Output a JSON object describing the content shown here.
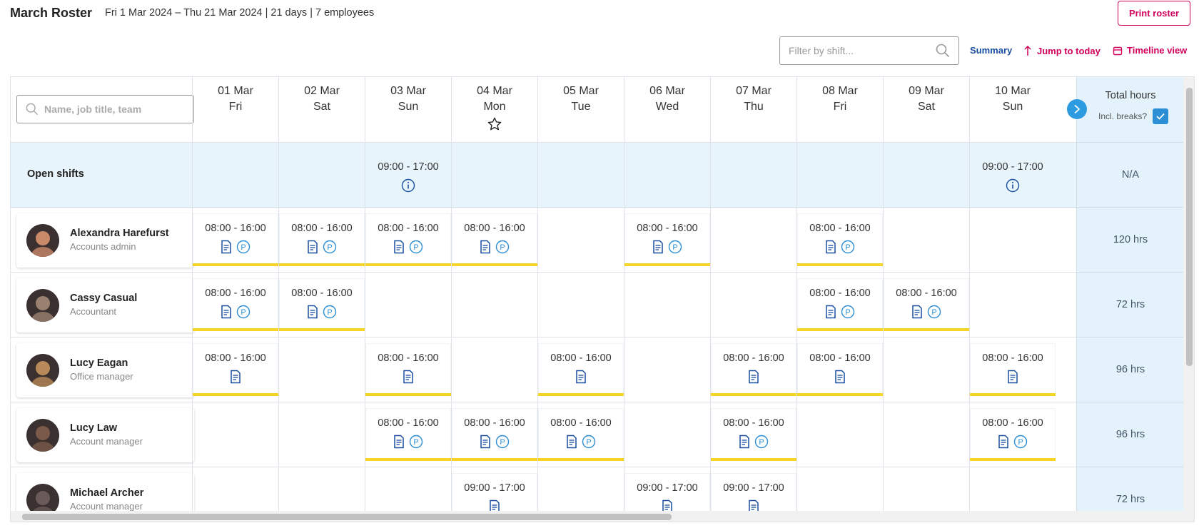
{
  "header": {
    "title": "March Roster",
    "subtitle": "Fri 1 Mar 2024 – Thu 21 Mar 2024 | 21 days | 7 employees",
    "print_label": "Print roster"
  },
  "toolbar": {
    "filter_placeholder": "Filter by shift...",
    "summary_label": "Summary",
    "jump_today_label": "Jump to today",
    "timeline_label": "Timeline view"
  },
  "search": {
    "placeholder": "Name, job title, team"
  },
  "days": [
    {
      "date": "01 Mar",
      "dow": "Fri"
    },
    {
      "date": "02 Mar",
      "dow": "Sat"
    },
    {
      "date": "03 Mar",
      "dow": "Sun"
    },
    {
      "date": "04 Mar",
      "dow": "Mon",
      "today": true
    },
    {
      "date": "05 Mar",
      "dow": "Tue"
    },
    {
      "date": "06 Mar",
      "dow": "Wed"
    },
    {
      "date": "07 Mar",
      "dow": "Thu"
    },
    {
      "date": "08 Mar",
      "dow": "Fri"
    },
    {
      "date": "09 Mar",
      "dow": "Sat"
    },
    {
      "date": "10 Mar",
      "dow": "Sun"
    }
  ],
  "totals_header": {
    "title": "Total hours",
    "incl_breaks": "Incl. breaks?"
  },
  "open_shifts": {
    "label": "Open shifts",
    "total": "N/A",
    "shifts": [
      "",
      "",
      "09:00 - 17:00",
      "",
      "",
      "",
      "",
      "",
      "",
      "09:00 - 17:00"
    ]
  },
  "employees": [
    {
      "name": "Alexandra Harefurst",
      "role": "Accounts admin",
      "total": "120 hrs",
      "shifts": [
        "08:00 - 16:00",
        "08:00 - 16:00",
        "08:00 - 16:00",
        "08:00 - 16:00",
        "",
        "08:00 - 16:00",
        "",
        "08:00 - 16:00",
        "",
        ""
      ],
      "public": true
    },
    {
      "name": "Cassy Casual",
      "role": "Accountant",
      "total": "72 hrs",
      "shifts": [
        "08:00 - 16:00",
        "08:00 - 16:00",
        "",
        "",
        "",
        "",
        "",
        "08:00 - 16:00",
        "08:00 - 16:00",
        ""
      ],
      "public": true
    },
    {
      "name": "Lucy Eagan",
      "role": "Office manager",
      "total": "96 hrs",
      "shifts": [
        "08:00 - 16:00",
        "",
        "08:00 - 16:00",
        "",
        "08:00 - 16:00",
        "",
        "08:00 - 16:00",
        "08:00 - 16:00",
        "",
        "08:00 - 16:00"
      ],
      "public": false
    },
    {
      "name": "Lucy Law",
      "role": "Account manager",
      "total": "96 hrs",
      "shifts": [
        "",
        "",
        "08:00 - 16:00",
        "08:00 - 16:00",
        "08:00 - 16:00",
        "",
        "08:00 - 16:00",
        "",
        "",
        "08:00 - 16:00"
      ],
      "public": true
    },
    {
      "name": "Michael Archer",
      "role": "Account manager",
      "total": "72 hrs",
      "shifts": [
        "",
        "",
        "",
        "09:00 - 17:00",
        "",
        "09:00 - 17:00",
        "09:00 - 17:00",
        "",
        "",
        ""
      ],
      "public": false
    }
  ],
  "colors": {
    "accent": "#d0005c",
    "link": "#1a4fa0",
    "shift_bar": "#f5d327",
    "open_bg": "#e8f4fb",
    "icon": "#2c8fd6"
  }
}
